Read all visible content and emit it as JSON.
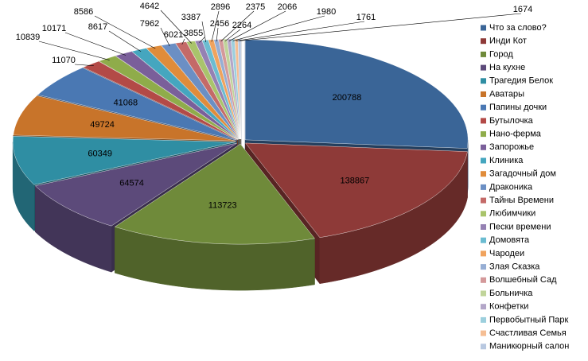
{
  "chart_data": {
    "type": "pie",
    "categories": [
      "Что за слово?",
      "Инди Кот",
      "Город",
      "На кухне",
      "Трагедия Белок",
      "Аватары",
      "Папины дочки",
      "Бутылочка",
      "Нано-ферма",
      "Запорожье",
      "Клиника",
      "Загадочный дом",
      "Драконика",
      "Тайны Времени",
      "Любимчики",
      "Пески времени",
      "Домовята",
      "Чародеи",
      "Злая Сказка",
      "Волшебный Сад",
      "Больничка",
      "Конфетки",
      "Первобытный Парк",
      "Счастливая Семья",
      "Маникюрный салон"
    ],
    "values": [
      200788,
      138867,
      113723,
      64574,
      60349,
      49724,
      41068,
      11070,
      10839,
      10171,
      8617,
      8586,
      7962,
      6021,
      4642,
      3855,
      3387,
      2896,
      2456,
      2375,
      2264,
      2066,
      1980,
      1761,
      1674
    ],
    "colors": [
      "#3a6597",
      "#8e3a38",
      "#6f8a3a",
      "#5c4a7a",
      "#2f8ea3",
      "#c8742a",
      "#4a78b3",
      "#b34a47",
      "#8fac4a",
      "#7a5f9a",
      "#45a6bf",
      "#e08c3a",
      "#6b8fc4",
      "#c46a68",
      "#a9c46b",
      "#9581b3",
      "#6bbcd1",
      "#f0a35e",
      "#96aed4",
      "#d4999a",
      "#c0d49a",
      "#b3a6c8",
      "#9ccfdd",
      "#f5be94",
      "#b8c8e0"
    ],
    "legend": "right"
  }
}
